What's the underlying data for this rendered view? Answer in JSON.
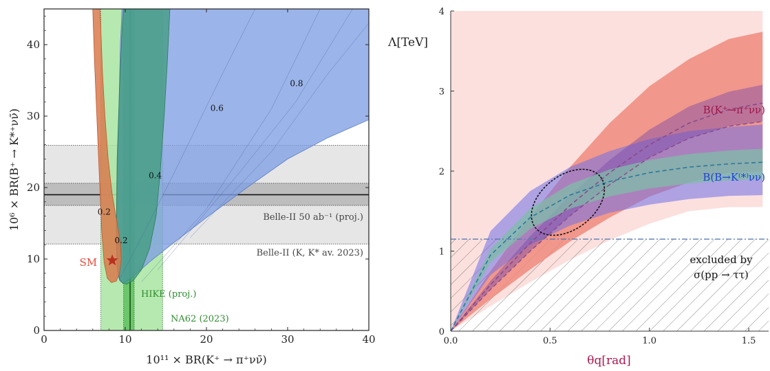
{
  "chart_data": [
    {
      "type": "area",
      "xlabel": "10¹¹ × BR(K⁺ → π⁺νν̄)",
      "ylabel": "10⁶ × BR(B⁺ → K*⁺νν̄)",
      "xlim": [
        0,
        40
      ],
      "ylim": [
        0,
        45
      ],
      "xticks": [
        "0",
        "10",
        "20",
        "30",
        "40"
      ],
      "yticks": [
        "0",
        "10",
        "20",
        "30",
        "40"
      ],
      "sm_point": {
        "label": "SM",
        "x": 8.4,
        "y": 9.8
      },
      "contour_labels": [
        {
          "text": "0.2",
          "x": 7.4,
          "y": 16.2
        },
        {
          "text": "0.2",
          "x": 9.5,
          "y": 12.2
        },
        {
          "text": "0.4",
          "x": 13.7,
          "y": 21.3
        },
        {
          "text": "0.6",
          "x": 21.3,
          "y": 30.7
        },
        {
          "text": "0.8",
          "x": 31.1,
          "y": 34.2
        }
      ],
      "horizontal_bands": [
        {
          "label": "Belle-II 50 ab⁻¹ (proj.)",
          "y_low": 17.5,
          "y_high": 20.6
        },
        {
          "label": "Belle-II (K, K* av. 2023)",
          "y_low": 12.1,
          "y_high": 25.9,
          "central": 19.0
        }
      ],
      "vertical_bands": [
        {
          "label": "HIKE (proj.)",
          "x_low": 9.8,
          "x_high": 11.1
        },
        {
          "label": "NA62 (2023)",
          "x_low": 7.0,
          "x_high": 14.6,
          "central": 10.6
        }
      ],
      "colors": {
        "blue_region": "#8aa8e6",
        "teal_region": "#5fae8e",
        "orange_region": "#e0845c",
        "green_band": "#a8e4a0",
        "gray_band": "#d8d8d8",
        "sm_star": "#c0392b",
        "label_green": "#2e8b2e",
        "label_red": "#e74c3c"
      }
    },
    {
      "type": "area",
      "xlabel": "θq[rad]",
      "ylabel": "Λ[TeV]",
      "xlim": [
        0,
        1.6
      ],
      "ylim": [
        0,
        4
      ],
      "xticks": [
        "0.0",
        "0.5",
        "1.0",
        "1.5"
      ],
      "yticks": [
        "0",
        "1",
        "2",
        "3",
        "4"
      ],
      "series": [
        {
          "name": "B(K⁺→π⁺νν)",
          "x": [
            0,
            0.2,
            0.4,
            0.6,
            0.8,
            1.0,
            1.2,
            1.4,
            1.57
          ],
          "central": [
            0,
            0.58,
            1.1,
            1.57,
            1.98,
            2.33,
            2.6,
            2.77,
            2.85
          ],
          "lower": [
            0,
            0.52,
            1.0,
            1.44,
            1.83,
            2.17,
            2.41,
            2.56,
            2.62
          ],
          "upper_outer": [
            0,
            0.75,
            1.43,
            2.05,
            2.6,
            3.06,
            3.4,
            3.65,
            3.74
          ],
          "lower_outer": [
            0,
            0.4,
            0.77,
            1.12,
            1.42,
            1.68,
            1.86,
            1.98,
            2.0
          ]
        },
        {
          "name": "B(B→K⁽*⁾νν)",
          "x": [
            0,
            0.2,
            0.4,
            0.6,
            0.8,
            1.0,
            1.2,
            1.4,
            1.57
          ],
          "central": [
            0,
            0.95,
            1.42,
            1.7,
            1.87,
            1.98,
            2.05,
            2.09,
            2.11
          ],
          "upper_outer": [
            0,
            1.25,
            1.75,
            2.05,
            2.25,
            2.4,
            2.5,
            2.55,
            2.58
          ],
          "lower_outer": [
            0,
            0.7,
            1.08,
            1.32,
            1.48,
            1.58,
            1.65,
            1.69,
            1.7
          ]
        }
      ],
      "excluded": {
        "label_line1": "excluded by",
        "label_line2": "σ(pp → ττ)",
        "y_max": 1.15
      },
      "light_band": {
        "y_low_at_max": 1.55,
        "y_high": 4.0
      },
      "ellipse": {
        "cx": 0.58,
        "cy": 1.6,
        "comment_free": true
      },
      "colors": {
        "pink_band": "#fbe0de",
        "red_band": "#ee8a7c",
        "purple_band": "#8a5ab0",
        "blue_band": "#8f8ff0",
        "teal_band": "#7fbca8",
        "kaon_label": "#a0144a",
        "b_label": "#1f3fd8",
        "axis_label": "#b0174e",
        "dash_purple": "#8a4a8a",
        "dash_teal": "#2a7a9a"
      }
    }
  ]
}
